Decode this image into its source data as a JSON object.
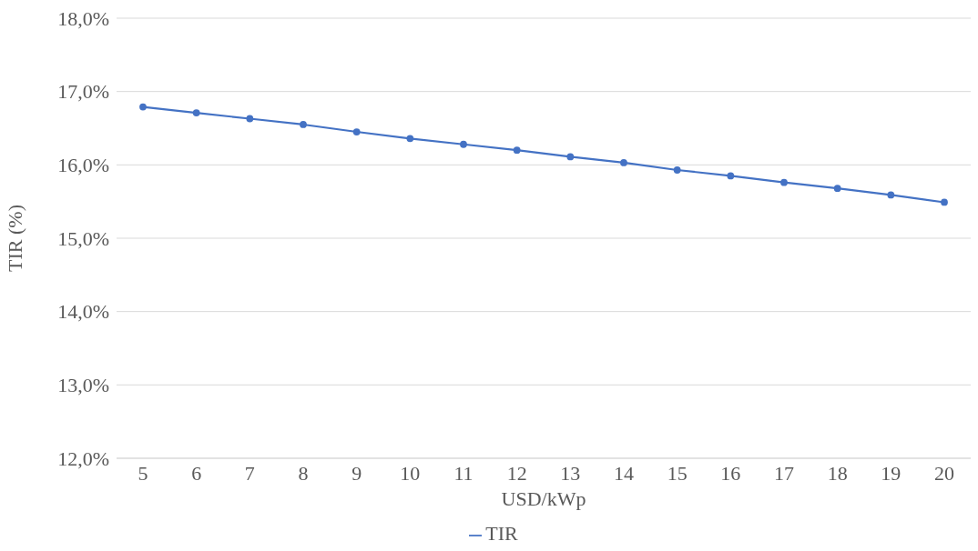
{
  "chart_data": {
    "type": "line",
    "xlabel": "USD/kWp",
    "ylabel": "TIR (%)",
    "categories": [
      "5",
      "6",
      "7",
      "8",
      "9",
      "10",
      "11",
      "12",
      "13",
      "14",
      "15",
      "16",
      "17",
      "18",
      "19",
      "20"
    ],
    "series": [
      {
        "name": "TIR",
        "color": "#4472c4",
        "values": [
          16.79,
          16.71,
          16.63,
          16.55,
          16.45,
          16.36,
          16.28,
          16.2,
          16.11,
          16.03,
          15.93,
          15.85,
          15.76,
          15.68,
          15.59,
          15.49
        ]
      }
    ],
    "ylim": [
      12,
      18
    ],
    "yticks": [
      {
        "value": 12,
        "label": "12,0%"
      },
      {
        "value": 13,
        "label": "13,0%"
      },
      {
        "value": 14,
        "label": "14,0%"
      },
      {
        "value": 15,
        "label": "15,0%"
      },
      {
        "value": 16,
        "label": "16,0%"
      },
      {
        "value": 17,
        "label": "17,0%"
      },
      {
        "value": 18,
        "label": "18,0%"
      }
    ],
    "grid": "y",
    "legend": "bottom",
    "marker": "circle",
    "line_style": "solid"
  }
}
